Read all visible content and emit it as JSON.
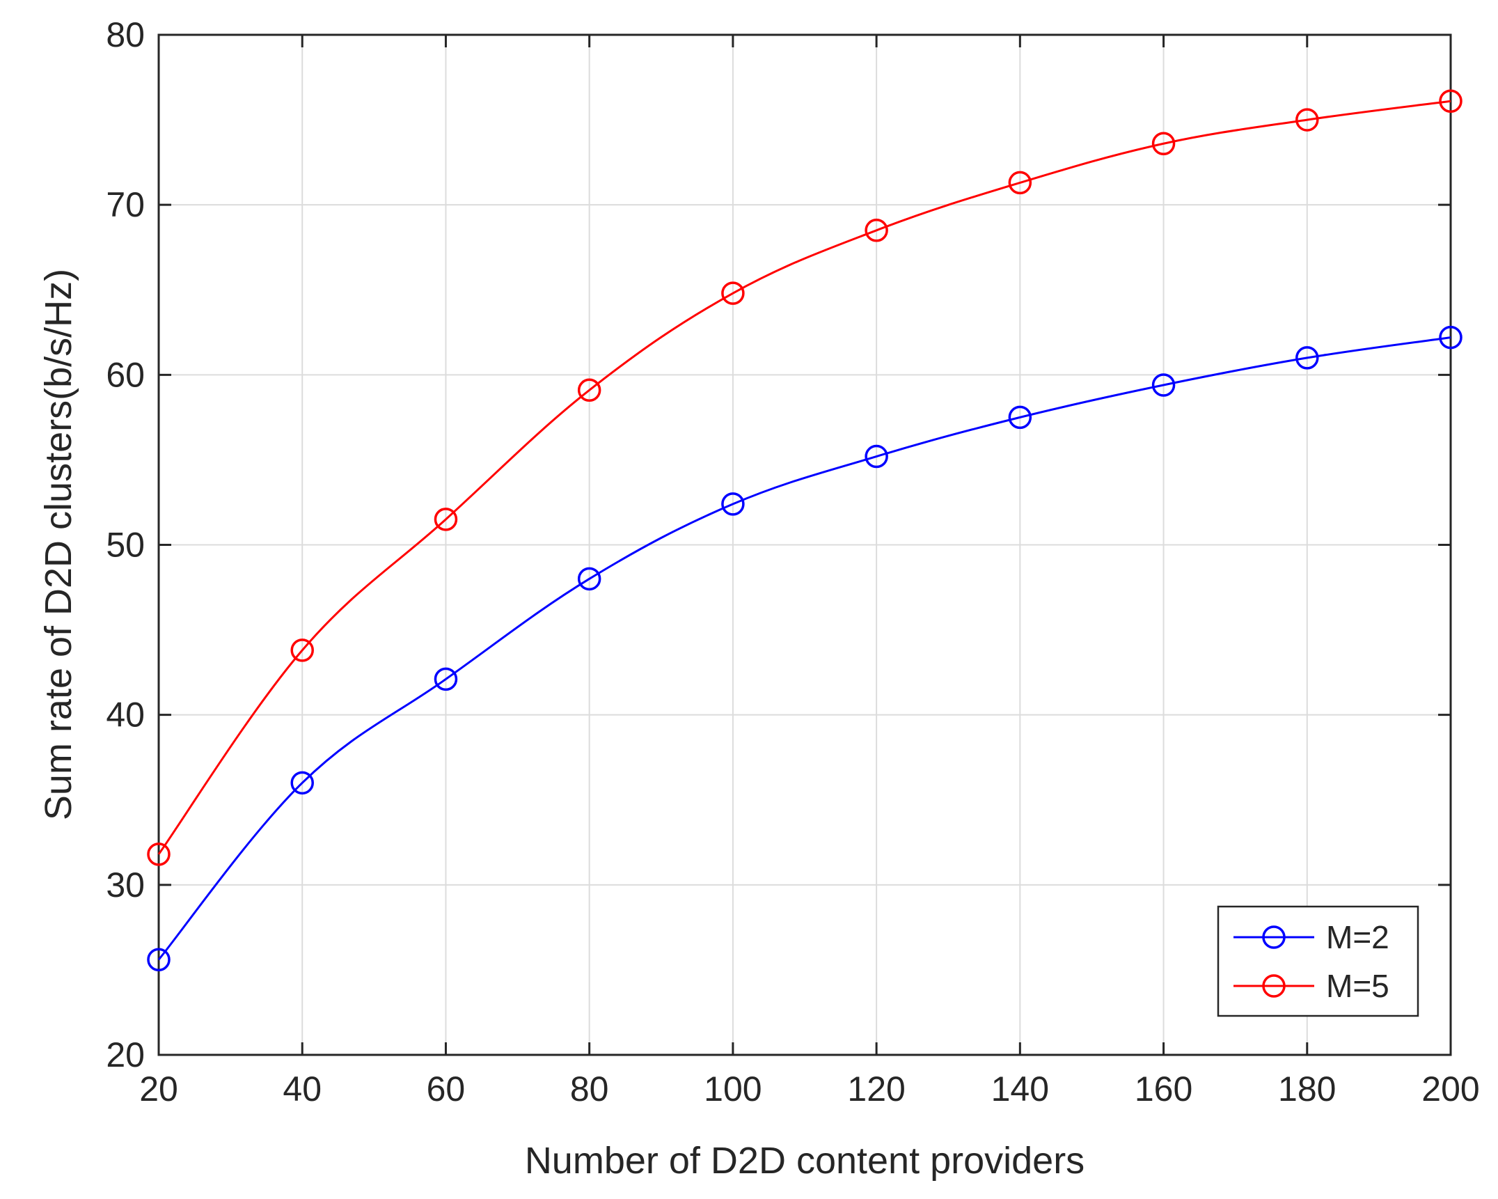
{
  "chart_data": {
    "type": "line",
    "title": "",
    "xlabel": "Number of D2D content providers",
    "ylabel": "Sum rate of D2D clusters(b/s/Hz)",
    "xlim": [
      20,
      200
    ],
    "ylim": [
      20,
      80
    ],
    "xticks": [
      20,
      40,
      60,
      80,
      100,
      120,
      140,
      160,
      180,
      200
    ],
    "yticks": [
      20,
      30,
      40,
      50,
      60,
      70,
      80
    ],
    "grid": true,
    "legend_position": "bottom-right",
    "x": [
      20,
      40,
      60,
      80,
      100,
      120,
      140,
      160,
      180,
      200
    ],
    "series": [
      {
        "name": "M=2",
        "color": "#0000ff",
        "marker": "circle",
        "values": [
          25.6,
          36.0,
          42.1,
          48.0,
          52.4,
          55.2,
          57.5,
          59.4,
          61.0,
          62.2
        ]
      },
      {
        "name": "M=5",
        "color": "#ff0000",
        "marker": "circle",
        "values": [
          31.8,
          43.8,
          51.5,
          59.1,
          64.8,
          68.5,
          71.3,
          73.6,
          75.0,
          76.1
        ]
      }
    ]
  }
}
